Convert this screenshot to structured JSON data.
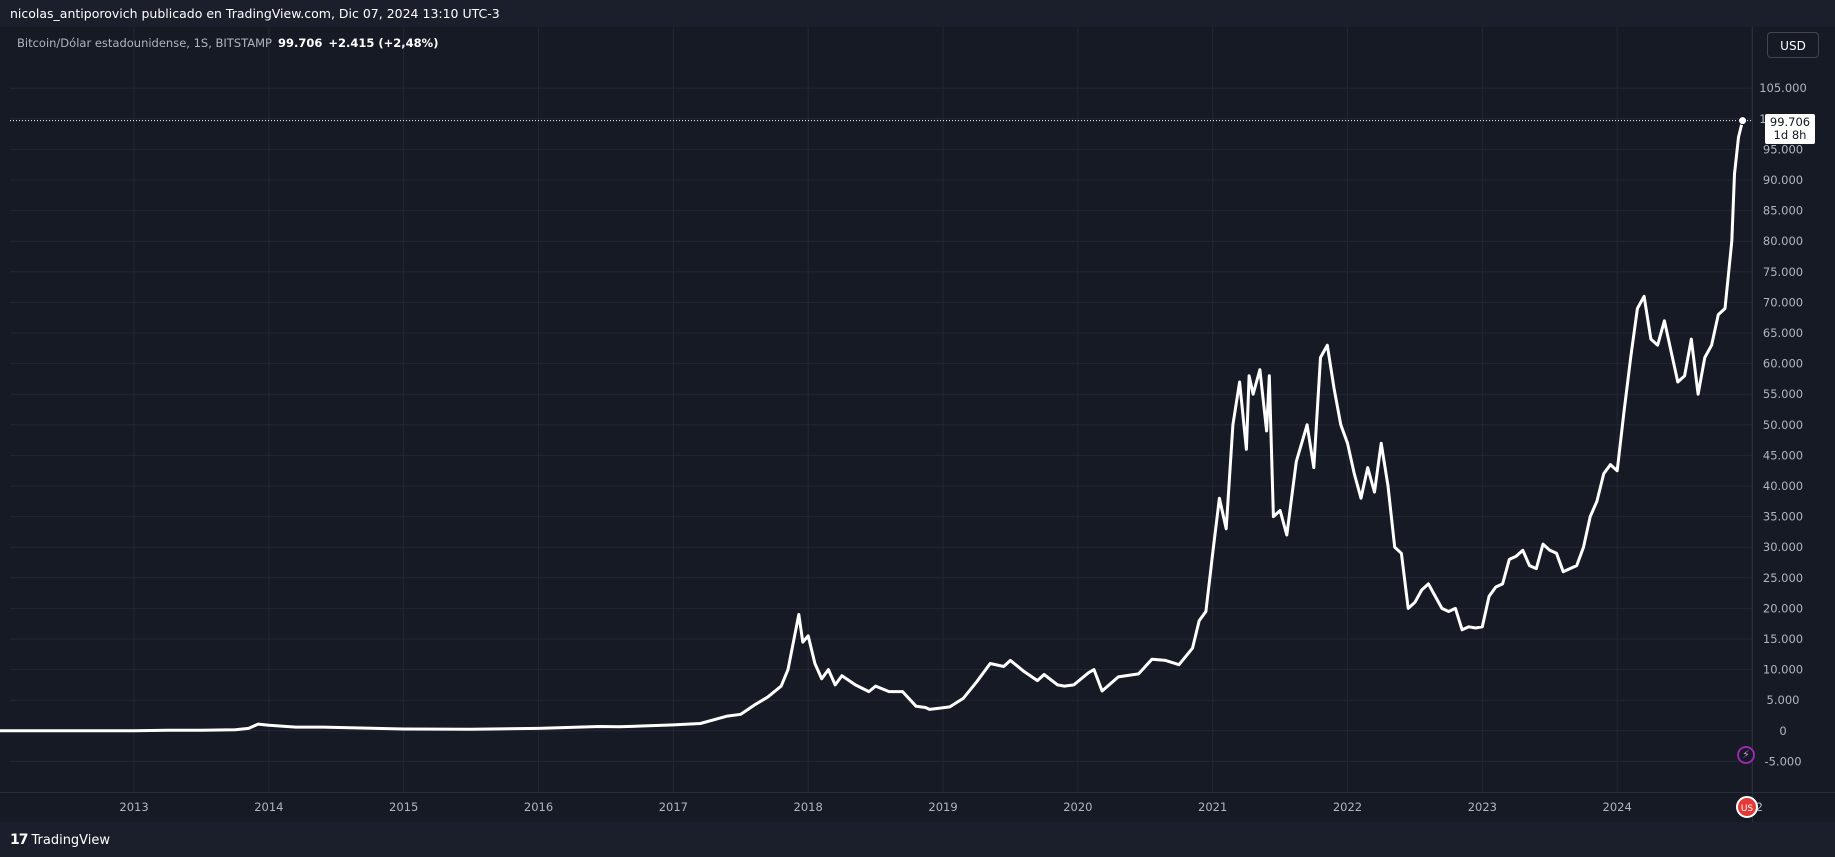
{
  "header": {
    "publisher_line": "nicolas_antiporovich publicado en TradingView.com, Dic 07, 2024 13:10 UTC-3"
  },
  "legend": {
    "symbol": "Bitcoin/Dólar estadounidense, 1S, BITSTAMP",
    "price": "99.706",
    "change": "+2.415 (+2,48%)"
  },
  "currency_button": "USD",
  "last_price_label": {
    "price": "99.706",
    "countdown": "1d 8h"
  },
  "footer": {
    "brand": "TradingView"
  },
  "icons": {
    "event_flash": "lightning-icon",
    "event_flag": "us-flag-icon"
  },
  "colors": {
    "line": "#ffffff",
    "background": "#161a25",
    "grid": "#232734",
    "event_ring": "#9c27b0"
  },
  "chart_data": {
    "type": "line",
    "series": [
      {
        "x": [
          2012.0,
          2012.5,
          2013.0,
          2013.25,
          2013.5,
          2013.75,
          2013.85,
          2013.92,
          2014.0,
          2014.2,
          2014.4,
          2014.6,
          2014.8,
          2015.0,
          2015.5,
          2016.0,
          2016.45,
          2016.6,
          2017.0,
          2017.2,
          2017.4,
          2017.5,
          2017.6,
          2017.7,
          2017.8,
          2017.85,
          2017.93,
          2017.96,
          2018.0,
          2018.05,
          2018.1,
          2018.15,
          2018.2,
          2018.25,
          2018.35,
          2018.45,
          2018.5,
          2018.6,
          2018.7,
          2018.8,
          2018.87,
          2018.9,
          2018.97,
          2019.05,
          2019.15,
          2019.25,
          2019.35,
          2019.45,
          2019.5,
          2019.6,
          2019.7,
          2019.75,
          2019.85,
          2019.9,
          2019.97,
          2020.08,
          2020.12,
          2020.18,
          2020.3,
          2020.45,
          2020.55,
          2020.65,
          2020.75,
          2020.85,
          2020.9,
          2020.95,
          2021.0,
          2021.05,
          2021.1,
          2021.15,
          2021.2,
          2021.25,
          2021.27,
          2021.3,
          2021.35,
          2021.4,
          2021.42,
          2021.45,
          2021.5,
          2021.55,
          2021.62,
          2021.7,
          2021.75,
          2021.8,
          2021.85,
          2021.9,
          2021.95,
          2022.0,
          2022.05,
          2022.1,
          2022.15,
          2022.2,
          2022.25,
          2022.3,
          2022.35,
          2022.4,
          2022.45,
          2022.5,
          2022.55,
          2022.6,
          2022.7,
          2022.75,
          2022.8,
          2022.85,
          2022.9,
          2022.95,
          2023.0,
          2023.05,
          2023.1,
          2023.15,
          2023.2,
          2023.25,
          2023.3,
          2023.35,
          2023.4,
          2023.45,
          2023.5,
          2023.55,
          2023.6,
          2023.65,
          2023.7,
          2023.75,
          2023.8,
          2023.85,
          2023.9,
          2023.95,
          2024.0,
          2024.05,
          2024.1,
          2024.15,
          2024.2,
          2024.25,
          2024.3,
          2024.35,
          2024.4,
          2024.45,
          2024.5,
          2024.55,
          2024.6,
          2024.65,
          2024.7,
          2024.75,
          2024.8,
          2024.85,
          2024.87,
          2024.9,
          2024.93
        ],
        "values": [
          5,
          12,
          13,
          100,
          90,
          180,
          400,
          1100,
          900,
          600,
          600,
          500,
          400,
          300,
          250,
          400,
          700,
          650,
          970,
          1200,
          2400,
          2700,
          4200,
          5500,
          7300,
          10000,
          19000,
          14500,
          15500,
          11000,
          8500,
          10000,
          7500,
          9000,
          7500,
          6400,
          7300,
          6400,
          6400,
          4000,
          3800,
          3500,
          3700,
          3900,
          5300,
          8000,
          11000,
          10500,
          11500,
          9700,
          8200,
          9200,
          7500,
          7300,
          7500,
          9500,
          10000,
          6500,
          8800,
          9300,
          11700,
          11500,
          10800,
          13500,
          18000,
          19500,
          29000,
          38000,
          33000,
          50000,
          57000,
          46000,
          58000,
          55000,
          59000,
          49000,
          58000,
          35000,
          36000,
          32000,
          44000,
          50000,
          43000,
          61000,
          63000,
          56000,
          50000,
          47000,
          42000,
          38000,
          43000,
          39000,
          47000,
          40000,
          30000,
          29000,
          20000,
          21000,
          23000,
          24000,
          20000,
          19500,
          20000,
          16500,
          17000,
          16800,
          17000,
          22000,
          23500,
          24000,
          28000,
          28500,
          29500,
          27000,
          26500,
          30500,
          29500,
          29000,
          26000,
          26500,
          27000,
          30000,
          35000,
          37500,
          42000,
          43500,
          42500,
          52000,
          61000,
          69000,
          71000,
          64000,
          63000,
          67000,
          62000,
          57000,
          58000,
          64000,
          55000,
          61000,
          63000,
          68000,
          69000,
          80000,
          91000,
          97000,
          99706
        ]
      }
    ],
    "x_ticks": [
      "2013",
      "2014",
      "2015",
      "2016",
      "2017",
      "2018",
      "2019",
      "2020",
      "2021",
      "2022",
      "2023",
      "2024",
      "202"
    ],
    "y_ticks": [
      "105.000",
      "100.000",
      "95.000",
      "90.000",
      "85.000",
      "80.000",
      "75.000",
      "70.000",
      "65.000",
      "60.000",
      "55.000",
      "50.000",
      "45.000",
      "40.000",
      "35.000",
      "30.000",
      "25.000",
      "20.000",
      "15.000",
      "10.000",
      "5.000",
      "0",
      "-5.000"
    ],
    "x_range": [
      2012.08,
      2025.0
    ],
    "y_range": [
      -10000,
      115000
    ],
    "last_value": 99706,
    "grid": true,
    "legend_position": "top-left"
  }
}
